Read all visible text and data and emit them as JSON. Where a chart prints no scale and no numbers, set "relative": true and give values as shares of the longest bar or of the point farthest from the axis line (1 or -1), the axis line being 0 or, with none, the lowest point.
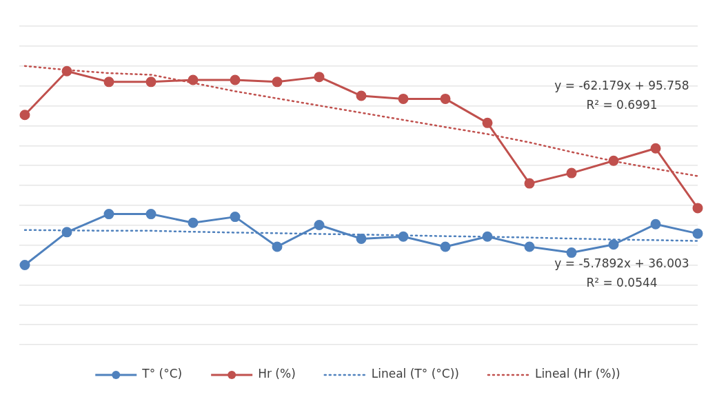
{
  "chart_data": {
    "type": "line",
    "relative": true,
    "grid": "y",
    "legend": "bottom",
    "marker": "circle",
    "line_style": "solid",
    "categories": [
      null,
      null,
      null,
      null,
      null,
      null,
      null,
      null,
      null,
      null,
      null,
      null,
      null,
      null,
      null,
      null,
      null
    ],
    "series": [
      {
        "name": "T° (°C)",
        "color": "#4f81bd",
        "values": [
          0,
          0.165,
          0.256,
          0.256,
          0.212,
          0.242,
          0.092,
          0.201,
          0.132,
          0.143,
          0.092,
          0.143,
          0.092,
          0.062,
          0.103,
          0.205,
          0.158
        ]
      },
      {
        "name": "Hr (%)",
        "color": "#c0504d",
        "values": [
          0.754,
          0.974,
          0.92,
          0.92,
          0.93,
          0.93,
          0.92,
          0.945,
          0.85,
          0.835,
          0.835,
          0.714,
          0.41,
          0.462,
          0.524,
          0.586,
          0.286
        ]
      },
      {
        "name": "Lineal (T° (°C))",
        "type": "line",
        "color": "#4f81bd",
        "line_style": "dotted",
        "marker": "none",
        "values": [
          0.176,
          0.174,
          0.172,
          0.172,
          0.167,
          0.163,
          0.16,
          0.156,
          0.153,
          0.149,
          0.145,
          0.142,
          0.138,
          0.133,
          0.128,
          0.125,
          0.121
        ]
      },
      {
        "name": "Lineal (Hr (%))",
        "type": "line",
        "color": "#c0504d",
        "line_style": "dotted",
        "marker": "none",
        "values": [
          1,
          0.98,
          0.964,
          0.956,
          0.915,
          0.873,
          0.837,
          0.801,
          0.765,
          0.729,
          0.693,
          0.658,
          0.616,
          0.568,
          0.522,
          0.483,
          0.447
        ]
      }
    ],
    "annotations": [
      "y = -62.179x + 95.758",
      "R² = 0.6991",
      "y = -5.7892x + 36.003",
      "R² = 0.0544"
    ]
  }
}
